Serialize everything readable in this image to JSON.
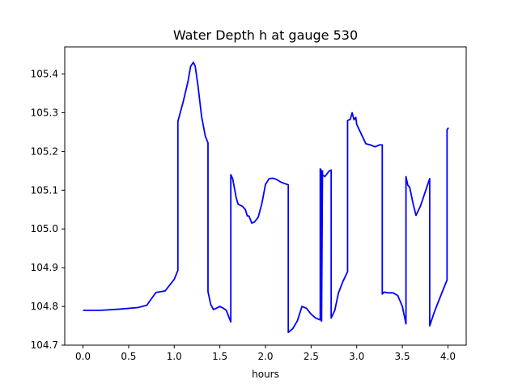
{
  "chart_data": {
    "type": "line",
    "title": "Water Depth h at gauge 530",
    "xlabel": "hours",
    "ylabel": "",
    "xlim": [
      -0.2,
      4.2
    ],
    "ylim": [
      104.7,
      105.47
    ],
    "xticks": [
      0.0,
      0.5,
      1.0,
      1.5,
      2.0,
      2.5,
      3.0,
      3.5,
      4.0
    ],
    "xtick_labels": [
      "0.0",
      "0.5",
      "1.0",
      "1.5",
      "2.0",
      "2.5",
      "3.0",
      "3.5",
      "4.0"
    ],
    "yticks": [
      104.7,
      104.8,
      104.9,
      105.0,
      105.1,
      105.2,
      105.3,
      105.4
    ],
    "ytick_labels": [
      "104.7",
      "104.8",
      "104.9",
      "105.0",
      "105.1",
      "105.2",
      "105.3",
      "105.4"
    ],
    "grid": false,
    "series": [
      {
        "color": "#0000ff",
        "x": [
          0.0,
          0.2,
          0.4,
          0.6,
          0.7,
          0.75,
          0.8,
          0.85,
          0.9,
          0.95,
          1.0,
          1.04,
          1.04,
          1.06,
          1.1,
          1.15,
          1.18,
          1.21,
          1.23,
          1.26,
          1.3,
          1.34,
          1.37,
          1.37,
          1.4,
          1.43,
          1.46,
          1.5,
          1.54,
          1.57,
          1.62,
          1.62,
          1.64,
          1.68,
          1.7,
          1.75,
          1.78,
          1.8,
          1.82,
          1.85,
          1.88,
          1.92,
          1.96,
          2.0,
          2.04,
          2.08,
          2.12,
          2.16,
          2.2,
          2.25,
          2.25,
          2.3,
          2.35,
          2.4,
          2.45,
          2.5,
          2.55,
          2.6,
          2.6,
          2.615,
          2.615,
          2.625,
          2.625,
          2.65,
          2.7,
          2.72,
          2.72,
          2.76,
          2.8,
          2.85,
          2.9,
          2.9,
          2.93,
          2.95,
          2.97,
          2.99,
          3.0,
          3.05,
          3.1,
          3.15,
          3.2,
          3.25,
          3.28,
          3.28,
          3.3,
          3.35,
          3.4,
          3.45,
          3.5,
          3.54,
          3.54,
          3.56,
          3.58,
          3.62,
          3.65,
          3.7,
          3.75,
          3.8,
          3.8,
          3.85,
          3.9,
          3.95,
          3.99,
          3.99,
          4.0,
          4.01
        ],
        "y": [
          104.79,
          104.79,
          104.793,
          104.797,
          104.803,
          104.82,
          104.836,
          104.838,
          104.84,
          104.855,
          104.87,
          104.893,
          105.278,
          105.295,
          105.33,
          105.38,
          105.42,
          105.43,
          105.42,
          105.37,
          105.29,
          105.24,
          105.222,
          104.838,
          104.805,
          104.792,
          104.795,
          104.8,
          104.795,
          104.79,
          104.76,
          105.14,
          105.13,
          105.08,
          105.064,
          105.058,
          105.05,
          105.034,
          105.033,
          105.015,
          105.018,
          105.03,
          105.065,
          105.115,
          105.13,
          105.131,
          105.128,
          105.122,
          105.118,
          105.114,
          104.733,
          104.743,
          104.763,
          104.8,
          104.795,
          104.78,
          104.77,
          104.765,
          105.155,
          105.15,
          104.762,
          105.15,
          105.14,
          105.135,
          105.15,
          105.152,
          104.77,
          104.79,
          104.835,
          104.865,
          104.89,
          105.28,
          105.283,
          105.3,
          105.282,
          105.288,
          105.27,
          105.245,
          105.22,
          105.217,
          105.212,
          105.217,
          105.217,
          104.832,
          104.837,
          104.835,
          104.835,
          104.828,
          104.8,
          104.755,
          105.135,
          105.113,
          105.108,
          105.063,
          105.035,
          105.06,
          105.095,
          105.13,
          104.75,
          104.785,
          104.815,
          104.845,
          104.868,
          105.255,
          105.26,
          105.26
        ]
      }
    ]
  }
}
